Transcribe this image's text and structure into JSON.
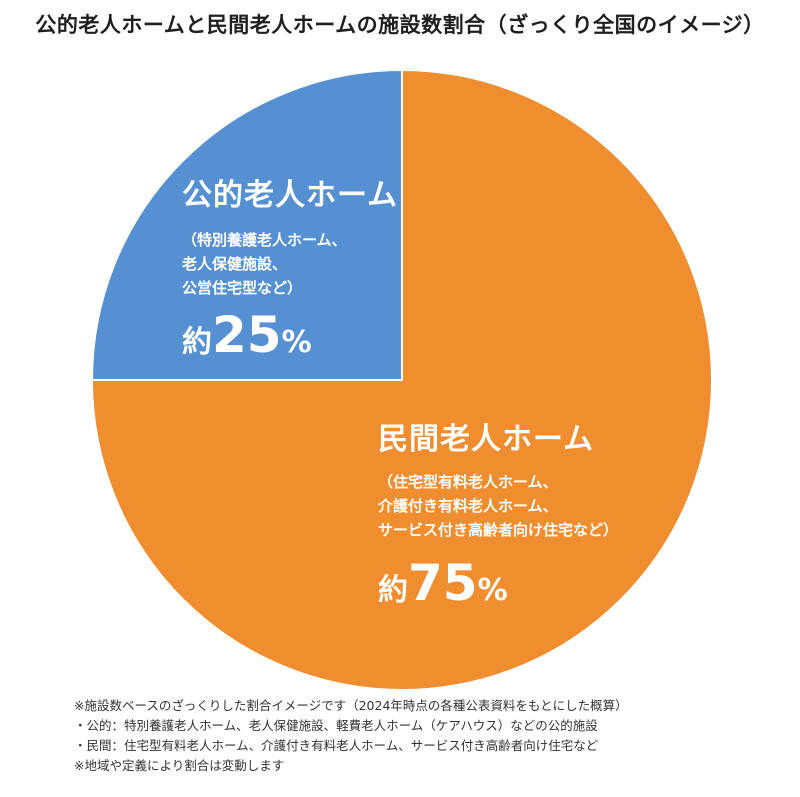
{
  "chart_data": {
    "type": "pie",
    "title": "公的老人ホームと民間老人ホームの施設数割合（ざっくり全国のイメージ）",
    "slices": [
      {
        "name": "公的老人ホーム",
        "description": [
          "（特別養護老人ホーム、",
          "老人保健施設、",
          "公営住宅型など）"
        ],
        "value": 25,
        "value_prefix": "約",
        "value_text": "25",
        "unit": "%",
        "color": "#5590d3"
      },
      {
        "name": "民間老人ホーム",
        "description": [
          "（住宅型有料老人ホーム、",
          "介護付き有料老人ホーム、",
          "サービス付き高齢者向け住宅など）"
        ],
        "value": 75,
        "value_prefix": "約",
        "value_text": "75",
        "unit": "%",
        "color": "#f08d2f"
      }
    ]
  },
  "notes": [
    "※施設数ベースのざっくりした割合イメージです（2024年時点の各種公表資料をもとにした概算）",
    "・公的：特別養護老人ホーム、老人保健施設、軽費老人ホーム（ケアハウス）などの公的施設",
    "・民間：住宅型有料老人ホーム、介護付き有料老人ホーム、サービス付き高齢者向け住宅など",
    "※地域や定義により割合は変動します"
  ]
}
